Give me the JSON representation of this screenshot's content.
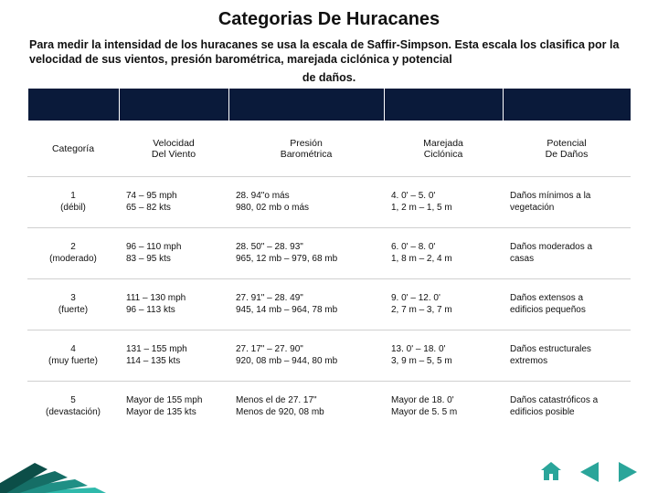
{
  "title": "Categorias De Huracanes",
  "intro": "Para medir la intensidad de los huracanes se usa la escala de Saffir-Simpson. Esta escala los clasifica por la velocidad de sus vientos, presión barométrica, marejada ciclónica y potencial",
  "intro_tail": "de daños.",
  "blank_row_color": "#0a1a3a",
  "columns": [
    {
      "l1": "Categoría",
      "l2": ""
    },
    {
      "l1": "Velocidad",
      "l2": "Del Viento"
    },
    {
      "l1": "Presión",
      "l2": "Barométrica"
    },
    {
      "l1": "Marejada",
      "l2": "Ciclónica"
    },
    {
      "l1": "Potencial",
      "l2": "De Daños"
    }
  ],
  "rows": [
    {
      "cat": {
        "l1": "1",
        "l2": "(débil)"
      },
      "c1": {
        "l1": "74 – 95 mph",
        "l2": "65 – 82 kts"
      },
      "c2": {
        "l1": "28. 94\"o más",
        "l2": "980, 02 mb o más"
      },
      "c3": {
        "l1": "4. 0' – 5. 0'",
        "l2": "1, 2 m – 1, 5 m"
      },
      "c4": {
        "l1": "Daños mínimos a la",
        "l2": "vegetación"
      }
    },
    {
      "cat": {
        "l1": "2",
        "l2": "(moderado)"
      },
      "c1": {
        "l1": "96 – 110 mph",
        "l2": "83 – 95 kts"
      },
      "c2": {
        "l1": "28. 50\" – 28. 93\"",
        "l2": "965, 12 mb – 979, 68 mb"
      },
      "c3": {
        "l1": "6. 0' – 8. 0'",
        "l2": "1, 8 m – 2, 4 m"
      },
      "c4": {
        "l1": "Daños moderados a",
        "l2": "casas"
      }
    },
    {
      "cat": {
        "l1": "3",
        "l2": "(fuerte)"
      },
      "c1": {
        "l1": "111 – 130 mph",
        "l2": "96 – 113 kts"
      },
      "c2": {
        "l1": "27. 91\" – 28. 49\"",
        "l2": "945, 14 mb – 964, 78 mb"
      },
      "c3": {
        "l1": "9. 0' – 12. 0'",
        "l2": "2, 7 m – 3, 7 m"
      },
      "c4": {
        "l1": "Daños extensos a",
        "l2": "edificios pequeños"
      }
    },
    {
      "cat": {
        "l1": "4",
        "l2": "(muy fuerte)"
      },
      "c1": {
        "l1": "131 – 155 mph",
        "l2": "114 – 135 kts"
      },
      "c2": {
        "l1": "27. 17\" – 27. 90\"",
        "l2": "920, 08 mb – 944, 80 mb"
      },
      "c3": {
        "l1": "13. 0' – 18. 0'",
        "l2": "3, 9 m – 5, 5 m"
      },
      "c4": {
        "l1": "Daños estructurales",
        "l2": "extremos"
      }
    },
    {
      "cat": {
        "l1": "5",
        "l2": "(devastación)"
      },
      "c1": {
        "l1": "Mayor de 155 mph",
        "l2": "Mayor de 135 kts"
      },
      "c2": {
        "l1": "Menos el de 27. 17\"",
        "l2": "Menos de 920, 08 mb"
      },
      "c3": {
        "l1": "Mayor de 18. 0'",
        "l2": "Mayor de 5. 5 m"
      },
      "c4": {
        "l1": "Daños catastróficos a",
        "l2": "edificios posible"
      }
    }
  ],
  "wedge_colors": [
    "#5bd3c7",
    "#2fb9ab",
    "#1f8f85",
    "#156e66",
    "#0c4e48"
  ],
  "nav_icon_color": "#2aa59a"
}
